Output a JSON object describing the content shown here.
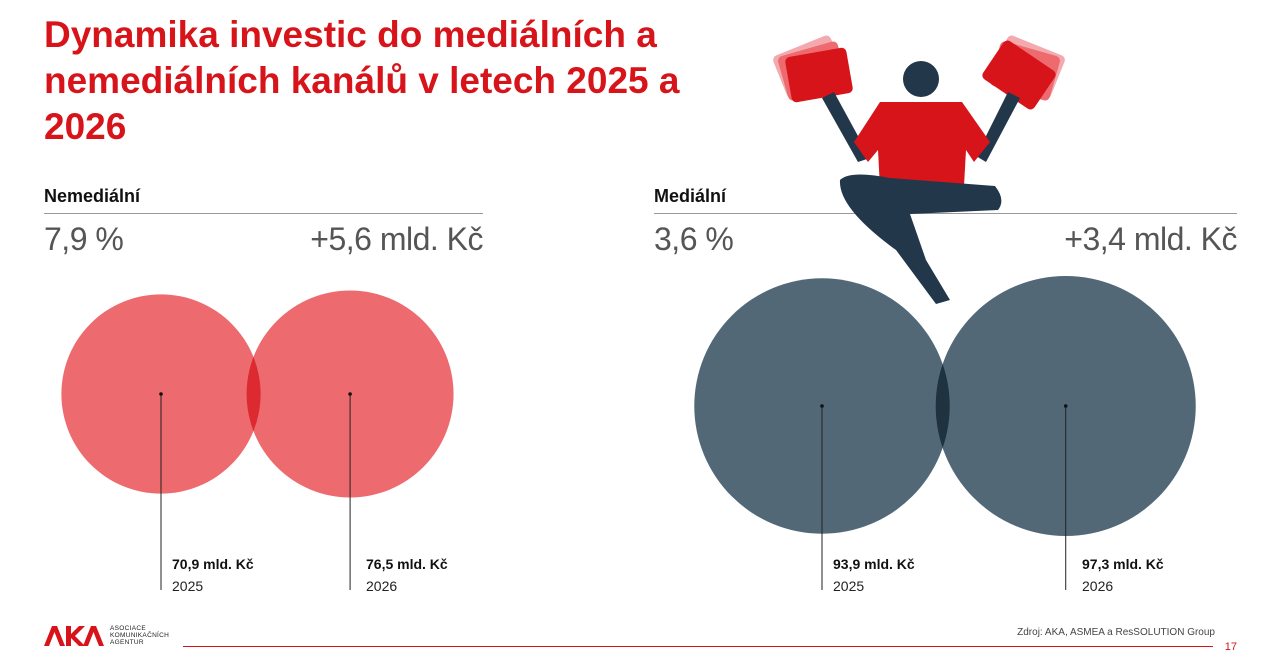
{
  "title": "Dynamika investic do mediálních a nemediálních kanálů v letech 2025 a 2026",
  "colors": {
    "accent": "#d7141a",
    "nonmedia": "#ed6a6f",
    "nonmedia_overlap": "#dc2a30",
    "media": "#526877",
    "media_overlap": "#1e3240"
  },
  "chart_data": [
    {
      "type": "venn",
      "label": "Nemediální",
      "growth_pct": "7,9 %",
      "growth_abs": "+5,6 mld. Kč",
      "sets": [
        {
          "year": "2025",
          "value": 70.9,
          "value_label": "70,9 mld. Kč"
        },
        {
          "year": "2026",
          "value": 76.5,
          "value_label": "76,5 mld. Kč"
        }
      ]
    },
    {
      "type": "venn",
      "label": "Mediální",
      "growth_pct": "3,6 %",
      "growth_abs": "+3,4 mld. Kč",
      "sets": [
        {
          "year": "2025",
          "value": 93.9,
          "value_label": "93,9 mld. Kč"
        },
        {
          "year": "2026",
          "value": 97.3,
          "value_label": "97,3 mld. Kč"
        }
      ]
    }
  ],
  "logo": {
    "mark": "AKA",
    "text": "ASOCIACE KOMUNIKAČNÍCH AGENTUR"
  },
  "source": "Zdroj: AKA, ASMEA a ResSOLUTION Group",
  "page_number": "17"
}
